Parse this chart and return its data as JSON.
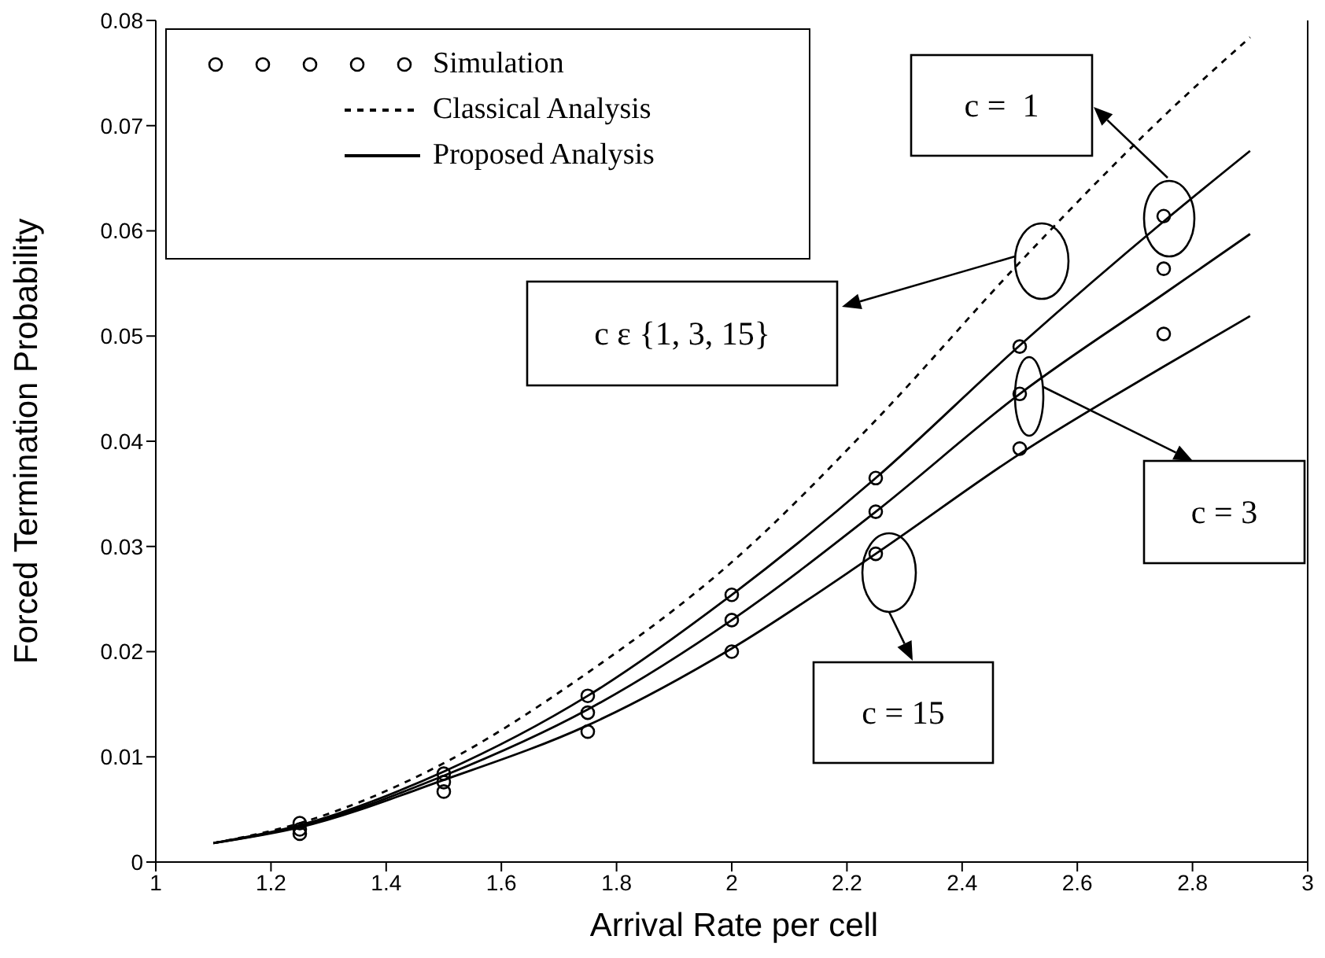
{
  "chart_data": {
    "type": "line",
    "xlabel": "Arrival Rate per cell",
    "ylabel": "Forced Termination Probability",
    "xlim": [
      1,
      3
    ],
    "xticks": [
      1,
      1.2,
      1.4,
      1.6,
      1.8,
      2,
      2.2,
      2.4,
      2.6,
      2.8,
      3
    ],
    "ylim": [
      0,
      0.08
    ],
    "yticks": [
      0,
      0.01,
      0.02,
      0.03,
      0.04,
      0.05,
      0.06,
      0.07,
      0.08
    ],
    "grid": false,
    "legend": "top left",
    "series": [
      {
        "name": "Simulation",
        "type": "scatter",
        "marker": "circle",
        "color": "#000000",
        "x": [
          1.25,
          1.25,
          1.25,
          1.5,
          1.5,
          1.5,
          1.75,
          1.75,
          1.75,
          2,
          2,
          2,
          2.25,
          2.25,
          2.25,
          2.5,
          2.5,
          2.5,
          2.75,
          2.75,
          2.75
        ],
        "values": [
          0.0037,
          0.0031,
          0.0027,
          0.0084,
          0.0076,
          0.0067,
          0.0158,
          0.0142,
          0.0124,
          0.0254,
          0.023,
          0.02,
          0.0365,
          0.0333,
          0.0293,
          0.049,
          0.0445,
          0.0393,
          0.0614,
          0.0564,
          0.0502
        ]
      },
      {
        "name": "Classical Analysis",
        "type": "line",
        "line_style": "dashed",
        "color": "#000000",
        "x": [
          1.1,
          1.25,
          1.5,
          1.75,
          2,
          2.25,
          2.5,
          2.75,
          2.9
        ],
        "values": [
          0.0018,
          0.0037,
          0.0094,
          0.018,
          0.0285,
          0.042,
          0.057,
          0.0709,
          0.0784
        ]
      },
      {
        "name": "Proposed Analysis",
        "type": "line",
        "line_style": "solid",
        "color": "#000000",
        "x": [
          1.1,
          1.25,
          1.5,
          1.75,
          2,
          2.25,
          2.5,
          2.75,
          2.9
        ],
        "values": [
          0.0018,
          0.0035,
          0.0086,
          0.0158,
          0.0254,
          0.0365,
          0.0491,
          0.0609,
          0.0676
        ]
      },
      {
        "type": "line",
        "line_style": "solid",
        "color": "#000000",
        "x": [
          1.1,
          1.25,
          1.5,
          1.75,
          2,
          2.25,
          2.5,
          2.75,
          2.9
        ],
        "values": [
          0.0018,
          0.0034,
          0.0082,
          0.0145,
          0.023,
          0.0333,
          0.0445,
          0.054,
          0.0597
        ]
      },
      {
        "type": "line",
        "line_style": "solid",
        "color": "#000000",
        "x": [
          1.1,
          1.25,
          1.5,
          1.75,
          2,
          2.25,
          2.5,
          2.75,
          2.9
        ],
        "values": [
          0.0018,
          0.0033,
          0.0078,
          0.013,
          0.0203,
          0.0293,
          0.0388,
          0.0471,
          0.0519
        ]
      }
    ],
    "annotations": [
      "c =  1",
      "c ε {1, 3, 15}",
      "c = 3",
      "c = 15"
    ]
  }
}
